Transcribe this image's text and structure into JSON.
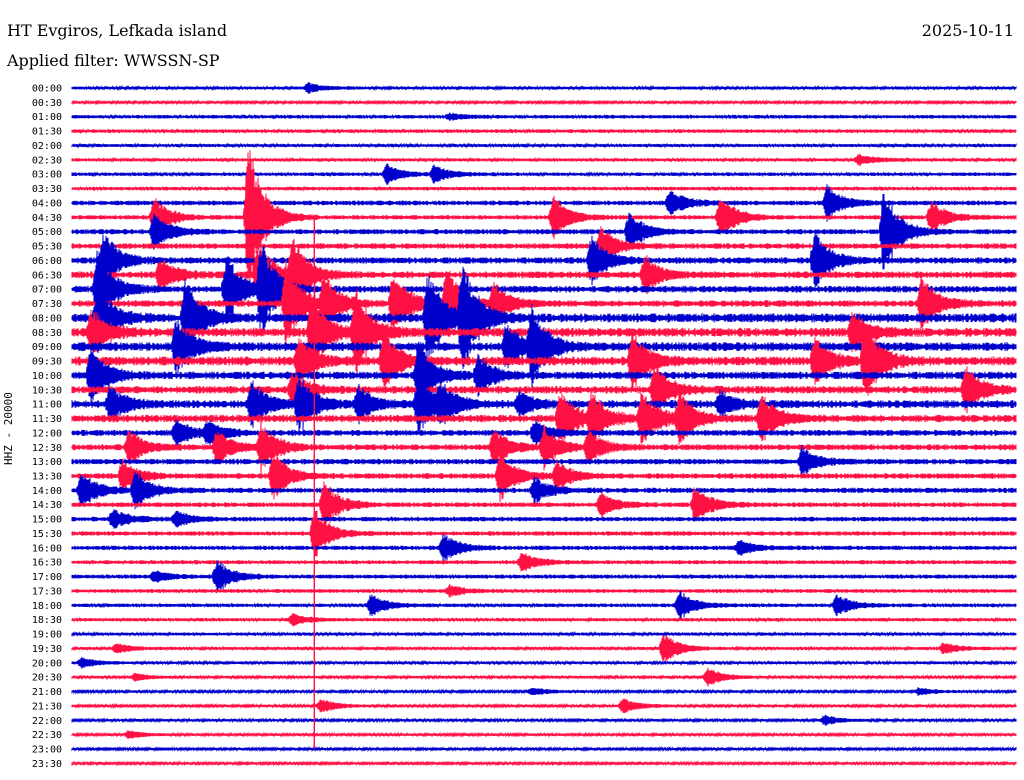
{
  "header": {
    "station": "HT Evgiros, Lefkada island",
    "date": "2025-10-11",
    "filter": "Applied filter: WWSSN-SP"
  },
  "chart_data": {
    "type": "line",
    "title": "HT Evgiros, Lefkada island",
    "subtitle": "Applied filter: WWSSN-SP",
    "ylabel": "HHZ - 20000",
    "colors": [
      "#0000cc",
      "#ff1144"
    ],
    "tick_labels": [
      "00:00",
      "00:30",
      "01:00",
      "01:30",
      "02:00",
      "02:30",
      "03:00",
      "03:30",
      "04:00",
      "04:30",
      "05:00",
      "05:30",
      "06:00",
      "06:30",
      "07:00",
      "07:30",
      "08:00",
      "08:30",
      "09:00",
      "09:30",
      "10:00",
      "10:30",
      "11:00",
      "11:30",
      "12:00",
      "12:30",
      "13:00",
      "13:30",
      "14:00",
      "14:30",
      "15:00",
      "15:30",
      "16:00",
      "16:30",
      "17:00",
      "17:30",
      "18:00",
      "18:30",
      "19:00",
      "19:30",
      "20:00",
      "20:30",
      "21:00",
      "21:30",
      "22:00",
      "22:30",
      "23:00",
      "23:30"
    ],
    "trace_noise": [
      1.5,
      1.2,
      1.8,
      1.8,
      1.6,
      1.6,
      1.8,
      1.8,
      2.4,
      2.2,
      2.6,
      2.8,
      3.2,
      3.4,
      3.4,
      3.4,
      4.5,
      4.5,
      4.5,
      4.5,
      3.8,
      3.8,
      4.0,
      3.8,
      3.0,
      3.0,
      2.8,
      2.8,
      2.6,
      2.4,
      2.3,
      2.2,
      2.2,
      2.0,
      2.0,
      1.9,
      1.8,
      1.7,
      1.6,
      1.5,
      1.5,
      1.4,
      1.3,
      1.3,
      1.3,
      1.3,
      1.2,
      1.2
    ],
    "events": [
      {
        "trace": 0,
        "minute": 7.5,
        "amp": 5
      },
      {
        "trace": 2,
        "minute": 12,
        "amp": 3
      },
      {
        "trace": 5,
        "minute": 25,
        "amp": 6
      },
      {
        "trace": 6,
        "minute": 10,
        "amp": 10
      },
      {
        "trace": 6,
        "minute": 11.5,
        "amp": 9
      },
      {
        "trace": 8,
        "minute": 24,
        "amp": 18
      },
      {
        "trace": 8,
        "minute": 19,
        "amp": 14
      },
      {
        "trace": 9,
        "minute": 2.6,
        "amp": 22
      },
      {
        "trace": 9,
        "minute": 5.6,
        "amp": 80
      },
      {
        "trace": 9,
        "minute": 15.3,
        "amp": 22
      },
      {
        "trace": 9,
        "minute": 20.6,
        "amp": 25
      },
      {
        "trace": 9,
        "minute": 27.3,
        "amp": 18
      },
      {
        "trace": 10,
        "minute": 2.6,
        "amp": 20
      },
      {
        "trace": 10,
        "minute": 17.7,
        "amp": 20
      },
      {
        "trace": 10,
        "minute": 25.8,
        "amp": 45
      },
      {
        "trace": 11,
        "minute": 16.8,
        "amp": 20
      },
      {
        "trace": 12,
        "minute": 1.0,
        "amp": 30
      },
      {
        "trace": 12,
        "minute": 16.5,
        "amp": 25
      },
      {
        "trace": 12,
        "minute": 23.6,
        "amp": 30
      },
      {
        "trace": 13,
        "minute": 2.8,
        "amp": 18
      },
      {
        "trace": 13,
        "minute": 5.9,
        "amp": 35
      },
      {
        "trace": 13,
        "minute": 7.0,
        "amp": 40
      },
      {
        "trace": 13,
        "minute": 18.2,
        "amp": 20
      },
      {
        "trace": 14,
        "minute": 0.8,
        "amp": 42
      },
      {
        "trace": 14,
        "minute": 4.9,
        "amp": 35
      },
      {
        "trace": 14,
        "minute": 6.0,
        "amp": 50
      },
      {
        "trace": 15,
        "minute": 6.8,
        "amp": 45
      },
      {
        "trace": 15,
        "minute": 8.0,
        "amp": 30
      },
      {
        "trace": 15,
        "minute": 10.2,
        "amp": 35
      },
      {
        "trace": 15,
        "minute": 11.9,
        "amp": 40
      },
      {
        "trace": 15,
        "minute": 13.4,
        "amp": 20
      },
      {
        "trace": 15,
        "minute": 27.0,
        "amp": 30
      },
      {
        "trace": 16,
        "minute": 0.8,
        "amp": 35
      },
      {
        "trace": 16,
        "minute": 3.6,
        "amp": 40
      },
      {
        "trace": 16,
        "minute": 11.3,
        "amp": 50
      },
      {
        "trace": 16,
        "minute": 12.4,
        "amp": 55
      },
      {
        "trace": 17,
        "minute": 0.6,
        "amp": 25
      },
      {
        "trace": 17,
        "minute": 7.6,
        "amp": 40
      },
      {
        "trace": 17,
        "minute": 9.0,
        "amp": 45
      },
      {
        "trace": 17,
        "minute": 24.8,
        "amp": 20
      },
      {
        "trace": 18,
        "minute": 3.3,
        "amp": 30
      },
      {
        "trace": 18,
        "minute": 13.8,
        "amp": 25
      },
      {
        "trace": 18,
        "minute": 14.6,
        "amp": 40
      },
      {
        "trace": 19,
        "minute": 7.2,
        "amp": 25
      },
      {
        "trace": 19,
        "minute": 9.9,
        "amp": 30
      },
      {
        "trace": 19,
        "minute": 17.8,
        "amp": 30
      },
      {
        "trace": 19,
        "minute": 23.6,
        "amp": 25
      },
      {
        "trace": 19,
        "minute": 25.2,
        "amp": 40
      },
      {
        "trace": 20,
        "minute": 0.6,
        "amp": 30
      },
      {
        "trace": 20,
        "minute": 11.0,
        "amp": 35
      },
      {
        "trace": 20,
        "minute": 12.9,
        "amp": 20
      },
      {
        "trace": 21,
        "minute": 7.0,
        "amp": 18
      },
      {
        "trace": 21,
        "minute": 18.5,
        "amp": 25
      },
      {
        "trace": 21,
        "minute": 28.4,
        "amp": 25
      },
      {
        "trace": 22,
        "minute": 1.2,
        "amp": 18
      },
      {
        "trace": 22,
        "minute": 5.7,
        "amp": 25
      },
      {
        "trace": 22,
        "minute": 7.2,
        "amp": 30
      },
      {
        "trace": 22,
        "minute": 9.1,
        "amp": 18
      },
      {
        "trace": 22,
        "minute": 11.0,
        "amp": 30
      },
      {
        "trace": 22,
        "minute": 11.7,
        "amp": 18
      },
      {
        "trace": 22,
        "minute": 14.2,
        "amp": 12
      },
      {
        "trace": 22,
        "minute": 20.6,
        "amp": 12
      },
      {
        "trace": 23,
        "minute": 15.5,
        "amp": 30
      },
      {
        "trace": 23,
        "minute": 16.5,
        "amp": 25
      },
      {
        "trace": 23,
        "minute": 18.1,
        "amp": 30
      },
      {
        "trace": 23,
        "minute": 19.3,
        "amp": 25
      },
      {
        "trace": 23,
        "minute": 21.9,
        "amp": 25
      },
      {
        "trace": 24,
        "minute": 3.3,
        "amp": 15
      },
      {
        "trace": 24,
        "minute": 4.3,
        "amp": 12
      },
      {
        "trace": 24,
        "minute": 14.7,
        "amp": 12
      },
      {
        "trace": 25,
        "minute": 1.8,
        "amp": 18
      },
      {
        "trace": 25,
        "minute": 4.6,
        "amp": 18
      },
      {
        "trace": 25,
        "minute": 6.0,
        "amp": 25
      },
      {
        "trace": 25,
        "minute": 13.4,
        "amp": 20
      },
      {
        "trace": 25,
        "minute": 15.0,
        "amp": 20
      },
      {
        "trace": 25,
        "minute": 16.4,
        "amp": 16
      },
      {
        "trace": 26,
        "minute": 23.2,
        "amp": 15
      },
      {
        "trace": 27,
        "minute": 1.6,
        "amp": 16
      },
      {
        "trace": 27,
        "minute": 6.4,
        "amp": 25
      },
      {
        "trace": 27,
        "minute": 13.6,
        "amp": 25
      },
      {
        "trace": 27,
        "minute": 15.4,
        "amp": 15
      },
      {
        "trace": 28,
        "minute": 0.3,
        "amp": 20
      },
      {
        "trace": 28,
        "minute": 2.0,
        "amp": 20
      },
      {
        "trace": 28,
        "minute": 14.7,
        "amp": 14
      },
      {
        "trace": 29,
        "minute": 8.0,
        "amp": 25
      },
      {
        "trace": 29,
        "minute": 16.8,
        "amp": 12
      },
      {
        "trace": 29,
        "minute": 19.8,
        "amp": 20
      },
      {
        "trace": 30,
        "minute": 1.3,
        "amp": 10
      },
      {
        "trace": 30,
        "minute": 3.3,
        "amp": 8
      },
      {
        "trace": 31,
        "minute": 7.7,
        "amp": 25
      },
      {
        "trace": 32,
        "minute": 11.8,
        "amp": 15
      },
      {
        "trace": 32,
        "minute": 21.2,
        "amp": 8
      },
      {
        "trace": 33,
        "minute": 14.3,
        "amp": 10
      },
      {
        "trace": 34,
        "minute": 4.6,
        "amp": 18
      },
      {
        "trace": 34,
        "minute": 2.6,
        "amp": 6
      },
      {
        "trace": 35,
        "minute": 12.0,
        "amp": 6
      },
      {
        "trace": 36,
        "minute": 9.5,
        "amp": 12
      },
      {
        "trace": 36,
        "minute": 19.3,
        "amp": 15
      },
      {
        "trace": 36,
        "minute": 24.3,
        "amp": 12
      },
      {
        "trace": 37,
        "minute": 7.0,
        "amp": 6
      },
      {
        "trace": 39,
        "minute": 1.4,
        "amp": 5
      },
      {
        "trace": 39,
        "minute": 18.8,
        "amp": 16
      },
      {
        "trace": 39,
        "minute": 27.7,
        "amp": 6
      },
      {
        "trace": 40,
        "minute": 0.3,
        "amp": 5
      },
      {
        "trace": 41,
        "minute": 2.0,
        "amp": 4
      },
      {
        "trace": 41,
        "minute": 20.2,
        "amp": 10
      },
      {
        "trace": 42,
        "minute": 14.6,
        "amp": 4
      },
      {
        "trace": 42,
        "minute": 26.9,
        "amp": 4
      },
      {
        "trace": 43,
        "minute": 7.9,
        "amp": 8
      },
      {
        "trace": 43,
        "minute": 17.5,
        "amp": 8
      },
      {
        "trace": 44,
        "minute": 23.9,
        "amp": 5
      },
      {
        "trace": 45,
        "minute": 1.8,
        "amp": 4
      }
    ],
    "long_spike": {
      "minute": 7.7,
      "from_trace": 9,
      "to_trace": 46
    },
    "grid": false
  }
}
